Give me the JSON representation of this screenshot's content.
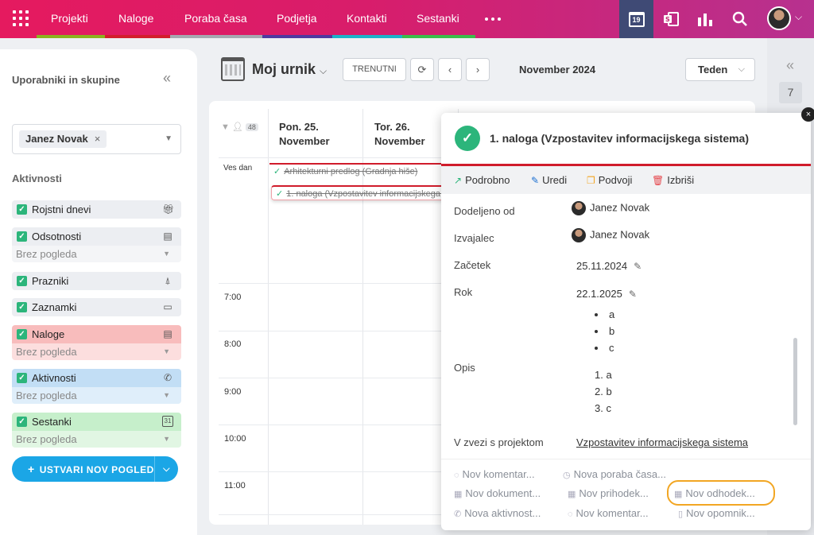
{
  "topnav": {
    "items": [
      {
        "label": "Projekti",
        "color": "#8bb31e"
      },
      {
        "label": "Naloge",
        "color": "#d31e2d"
      },
      {
        "label": "Poraba časa",
        "color": "#a5a9b0"
      },
      {
        "label": "Podjetja",
        "color": "#4f3aa0"
      },
      {
        "label": "Kontakti",
        "color": "#1cb3c8"
      },
      {
        "label": "Sestanki",
        "color": "#3bbd4a"
      }
    ],
    "calendar_badge": "19",
    "icons": [
      "apps-grid-icon",
      "calendar-icon",
      "exchange-icon",
      "reports-icon",
      "search-icon"
    ]
  },
  "left_panel": {
    "title": "Uporabniki in skupine",
    "selected_user": "Janez Novak",
    "activities_title": "Aktivnosti",
    "layers": [
      {
        "label": "Rojstni dnevi",
        "icon": "gift-icon",
        "bg": "#eceef2"
      },
      {
        "label": "Odsotnosti",
        "icon": "clipboard-icon",
        "bg": "#eceef2",
        "sub": "Brez pogleda"
      },
      {
        "label": "Prazniki",
        "icon": "bell-icon",
        "bg": "#eceef2"
      },
      {
        "label": "Zaznamki",
        "icon": "note-icon",
        "bg": "#eceef2"
      },
      {
        "label": "Naloge",
        "icon": "tasks-icon",
        "bg": "#f8bcbc",
        "subbg": "#fcdede",
        "sub": "Brez pogleda"
      },
      {
        "label": "Aktivnosti",
        "icon": "phone-icon",
        "bg": "#c2def5",
        "subbg": "#dfeefa",
        "sub": "Brez pogleda"
      },
      {
        "label": "Sestanki",
        "icon": "calendar-31-icon",
        "bg": "#c6efcb",
        "subbg": "#e1f6e3",
        "sub": "Brez pogleda"
      }
    ],
    "create_button": "USTVARI NOV POGLED"
  },
  "toolbar": {
    "view_name": "Moj urnik",
    "today_button": "TRENUTNI",
    "month_label": "November 2024",
    "period": "Teden"
  },
  "calendar": {
    "filter_count": "48",
    "days": [
      {
        "line1": "Pon. 25.",
        "line2": "November"
      },
      {
        "line1": "Tor. 26.",
        "line2": "November"
      }
    ],
    "allday_label": "Ves dan",
    "events": [
      {
        "text": "Arhitekturni predlog (Gradnja hiše)"
      },
      {
        "text": "1. naloga (Vzpostavitev informacijskega sistema)"
      }
    ],
    "hours": [
      "7:00",
      "8:00",
      "9:00",
      "10:00",
      "11:00"
    ]
  },
  "right_strip": {
    "badge": "7"
  },
  "popup": {
    "title": "1. naloga (Vzpostavitev informacijskega sistema)",
    "actions": [
      {
        "label": "Podrobno",
        "icon": "external-link-icon",
        "color": "#2cb57b"
      },
      {
        "label": "Uredi",
        "icon": "pencil-icon",
        "color": "#1b6fd1"
      },
      {
        "label": "Podvoji",
        "icon": "copy-icon",
        "color": "#f2a623"
      },
      {
        "label": "Izbriši",
        "icon": "trash-icon",
        "color": "#e5484d"
      }
    ],
    "fields": {
      "assigned_by_label": "Dodeljeno od",
      "assigned_by": "Janez Novak",
      "assignee_label": "Izvajalec",
      "assignee": "Janez Novak",
      "start_label": "Začetek",
      "start": "25.11.2024",
      "due_label": "Rok",
      "due": "22.1.2025",
      "desc_label": "Opis",
      "desc_bullets": [
        "a",
        "b",
        "c"
      ],
      "desc_numbered": [
        "a",
        "b",
        "c"
      ],
      "project_label": "V zvezi s projektom",
      "project": "Vzpostavitev informacijskega sistema"
    },
    "quick_actions": [
      {
        "label": "Nov komentar...",
        "icon": "comment-icon"
      },
      {
        "label": "Nova poraba časa...",
        "icon": "clock-icon"
      },
      {
        "label": "Nov dokument...",
        "icon": "document-icon"
      },
      {
        "label": "Nov prihodek...",
        "icon": "income-icon"
      },
      {
        "label": "Nov odhodek...",
        "icon": "expense-icon"
      },
      {
        "label": "Nova aktivnost...",
        "icon": "phone-icon"
      },
      {
        "label": "Nov komentar...",
        "icon": "comment-icon"
      },
      {
        "label": "Nov opomnik...",
        "icon": "reminder-icon"
      }
    ],
    "highlight_color": "#f2a623"
  }
}
